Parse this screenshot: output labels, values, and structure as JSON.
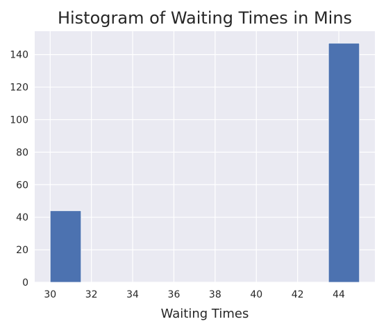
{
  "chart_data": {
    "type": "bar",
    "title": "Histogram of Waiting Times in Mins",
    "xlabel": "Waiting Times",
    "ylabel": "",
    "xlim": [
      29.25,
      45.75
    ],
    "ylim": [
      0,
      154.35
    ],
    "x_ticks": [
      30,
      32,
      34,
      36,
      38,
      40,
      42,
      44
    ],
    "y_ticks": [
      0,
      20,
      40,
      60,
      80,
      100,
      120,
      140
    ],
    "bins": [
      {
        "start": 30.0,
        "end": 31.5,
        "count": 44
      },
      {
        "start": 31.5,
        "end": 33.0,
        "count": 0
      },
      {
        "start": 33.0,
        "end": 34.5,
        "count": 0
      },
      {
        "start": 34.5,
        "end": 36.0,
        "count": 0
      },
      {
        "start": 36.0,
        "end": 37.5,
        "count": 0
      },
      {
        "start": 37.5,
        "end": 39.0,
        "count": 0
      },
      {
        "start": 39.0,
        "end": 40.5,
        "count": 0
      },
      {
        "start": 40.5,
        "end": 42.0,
        "count": 0
      },
      {
        "start": 42.0,
        "end": 43.5,
        "count": 0
      },
      {
        "start": 43.5,
        "end": 45.0,
        "count": 147
      }
    ],
    "grid": true,
    "colors": {
      "background": "#eaeaf2",
      "grid": "#ffffff",
      "bar": "#4c72b0",
      "text": "#262626"
    }
  }
}
